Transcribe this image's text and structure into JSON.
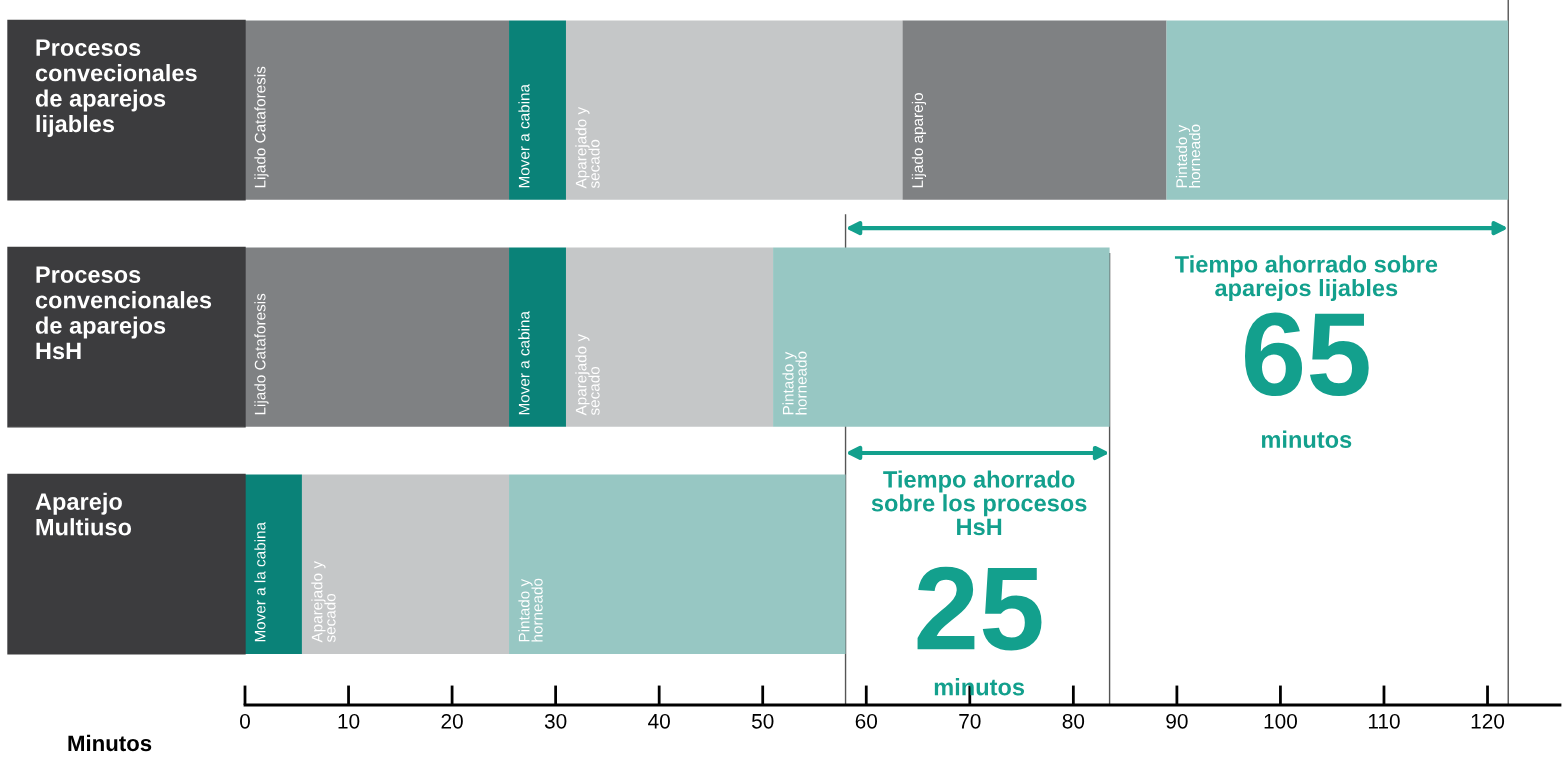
{
  "chart_data": {
    "type": "bar",
    "orientation": "horizontal",
    "stacked": true,
    "categories": [
      "Procesos\nconvecionales\nde aparejos\nlijables",
      "Procesos\nconvencionales\nde aparejos\nHsH",
      "Aparejo\nMultiuso"
    ],
    "series": [
      {
        "colors": [
          "#7f8183",
          "#7f8183",
          "#0a8278"
        ],
        "values": [
          25.5,
          25.5,
          5.5
        ],
        "value_labels": [
          "Lijado Cataforesis",
          "Lijado Cataforesis",
          "Mover a la cabina"
        ]
      },
      {
        "colors": [
          "#0a8278",
          "#0a8278",
          "#c5c7c8"
        ],
        "values": [
          5.5,
          5.5,
          20
        ],
        "value_labels": [
          "Mover a cabina",
          "Mover a cabina",
          "Aparejado y\nsecado"
        ]
      },
      {
        "colors": [
          "#c5c7c8",
          "#c5c7c8",
          "#97c7c3"
        ],
        "values": [
          32.5,
          20,
          32.5
        ],
        "value_labels": [
          "Aparejado y\nsecado",
          "Aparejado y\nsecado",
          "Pintado y\nhorneado"
        ]
      },
      {
        "colors": [
          "#7f8183",
          "#97c7c3",
          null
        ],
        "values": [
          25.5,
          32.5,
          null
        ],
        "value_labels": [
          "Lijado aparejo",
          "Pintado y\nhorneado",
          null
        ]
      },
      {
        "colors": [
          "#97c7c3",
          null,
          null
        ],
        "values": [
          33,
          null,
          null
        ],
        "value_labels": [
          "Pintado y\nhorneado",
          null,
          null
        ]
      }
    ],
    "xlabel": "Minutos",
    "xlim": [
      0,
      127
    ],
    "xticks": [
      0,
      10,
      20,
      30,
      40,
      50,
      60,
      70,
      80,
      90,
      100,
      110,
      120
    ],
    "ref_lines": [
      {
        "axis": "x",
        "value": 58,
        "color": "#555555"
      },
      {
        "axis": "x",
        "value": 83.5,
        "color": "#555555"
      },
      {
        "axis": "x",
        "value": 122,
        "color": "#555555"
      }
    ],
    "annotations": [
      "Tiempo ahorrado sobre\naparejos lijables",
      "65",
      "minutos",
      "Tiempo ahorrado\nsobre los procesos\nHsH",
      "25",
      "minutos"
    ],
    "grid": false
  }
}
